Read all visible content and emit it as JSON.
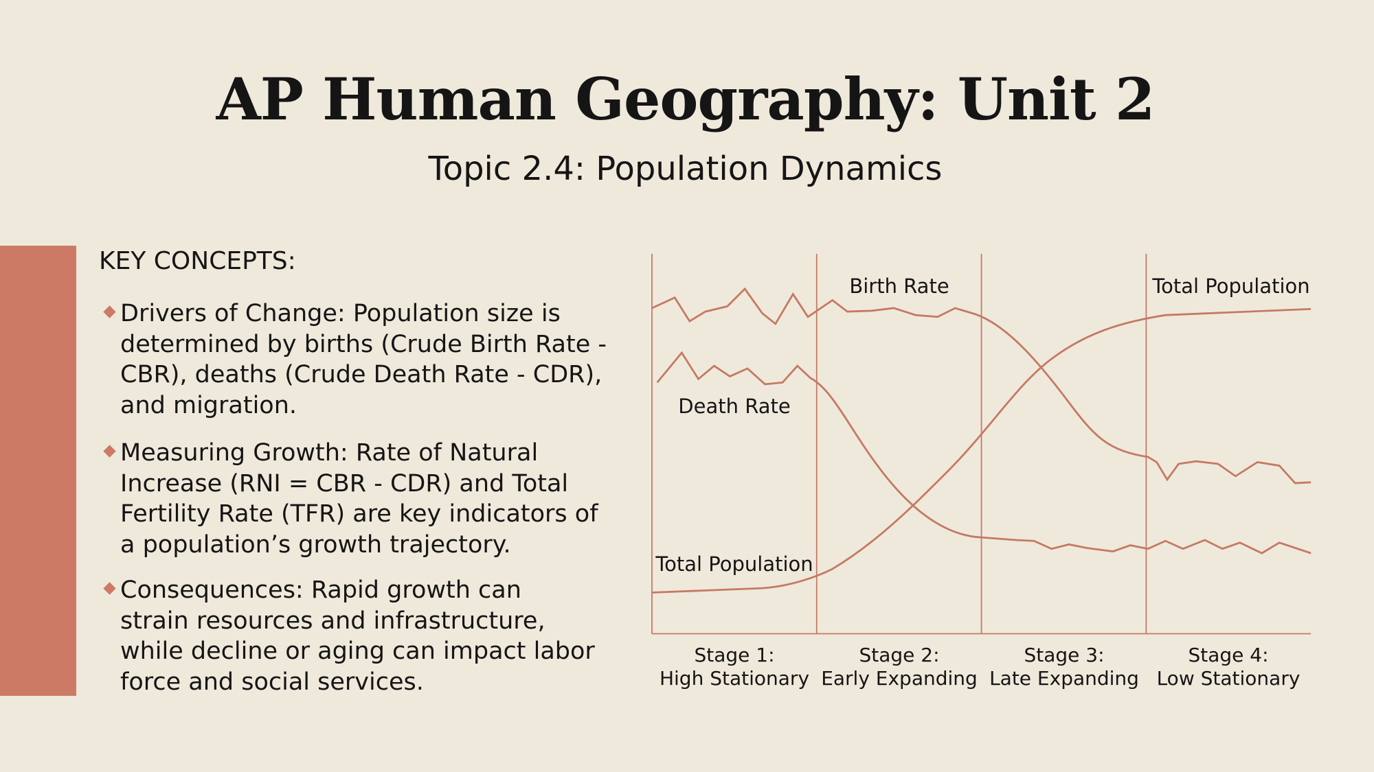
{
  "header": {
    "title": "AP Human Geography: Unit 2",
    "subtitle": "Topic 2.4: Population Dynamics"
  },
  "key_concepts": {
    "heading": "KEY CONCEPTS:",
    "items": [
      {
        "lines": [
          "Drivers of Change: Population size is",
          "determined by births (Crude Birth Rate -",
          "CBR), deaths (Crude Death Rate - CDR),",
          "and migration."
        ]
      },
      {
        "lines": [
          "Measuring Growth: Rate of Natural",
          "Increase (RNI = CBR - CDR) and Total",
          "Fertility Rate (TFR) are key indicators of",
          "a population’s growth trajectory."
        ]
      },
      {
        "lines": [
          "Consequences: Rapid growth can",
          "strain resources and infrastructure,",
          "while decline or aging can impact labor",
          "force and social services."
        ]
      }
    ]
  },
  "diagram": {
    "curve_labels": [
      "Birth Rate",
      "Total Population",
      "Death Rate",
      "Total Population"
    ],
    "stages": [
      {
        "lines": [
          "Stage 1:",
          "High Stationary"
        ]
      },
      {
        "lines": [
          "Stage 2:",
          "Early Expanding"
        ]
      },
      {
        "lines": [
          "Stage 3:",
          "Late Expanding"
        ]
      },
      {
        "lines": [
          "Stage 4:",
          "Low Stationary"
        ]
      }
    ]
  }
}
